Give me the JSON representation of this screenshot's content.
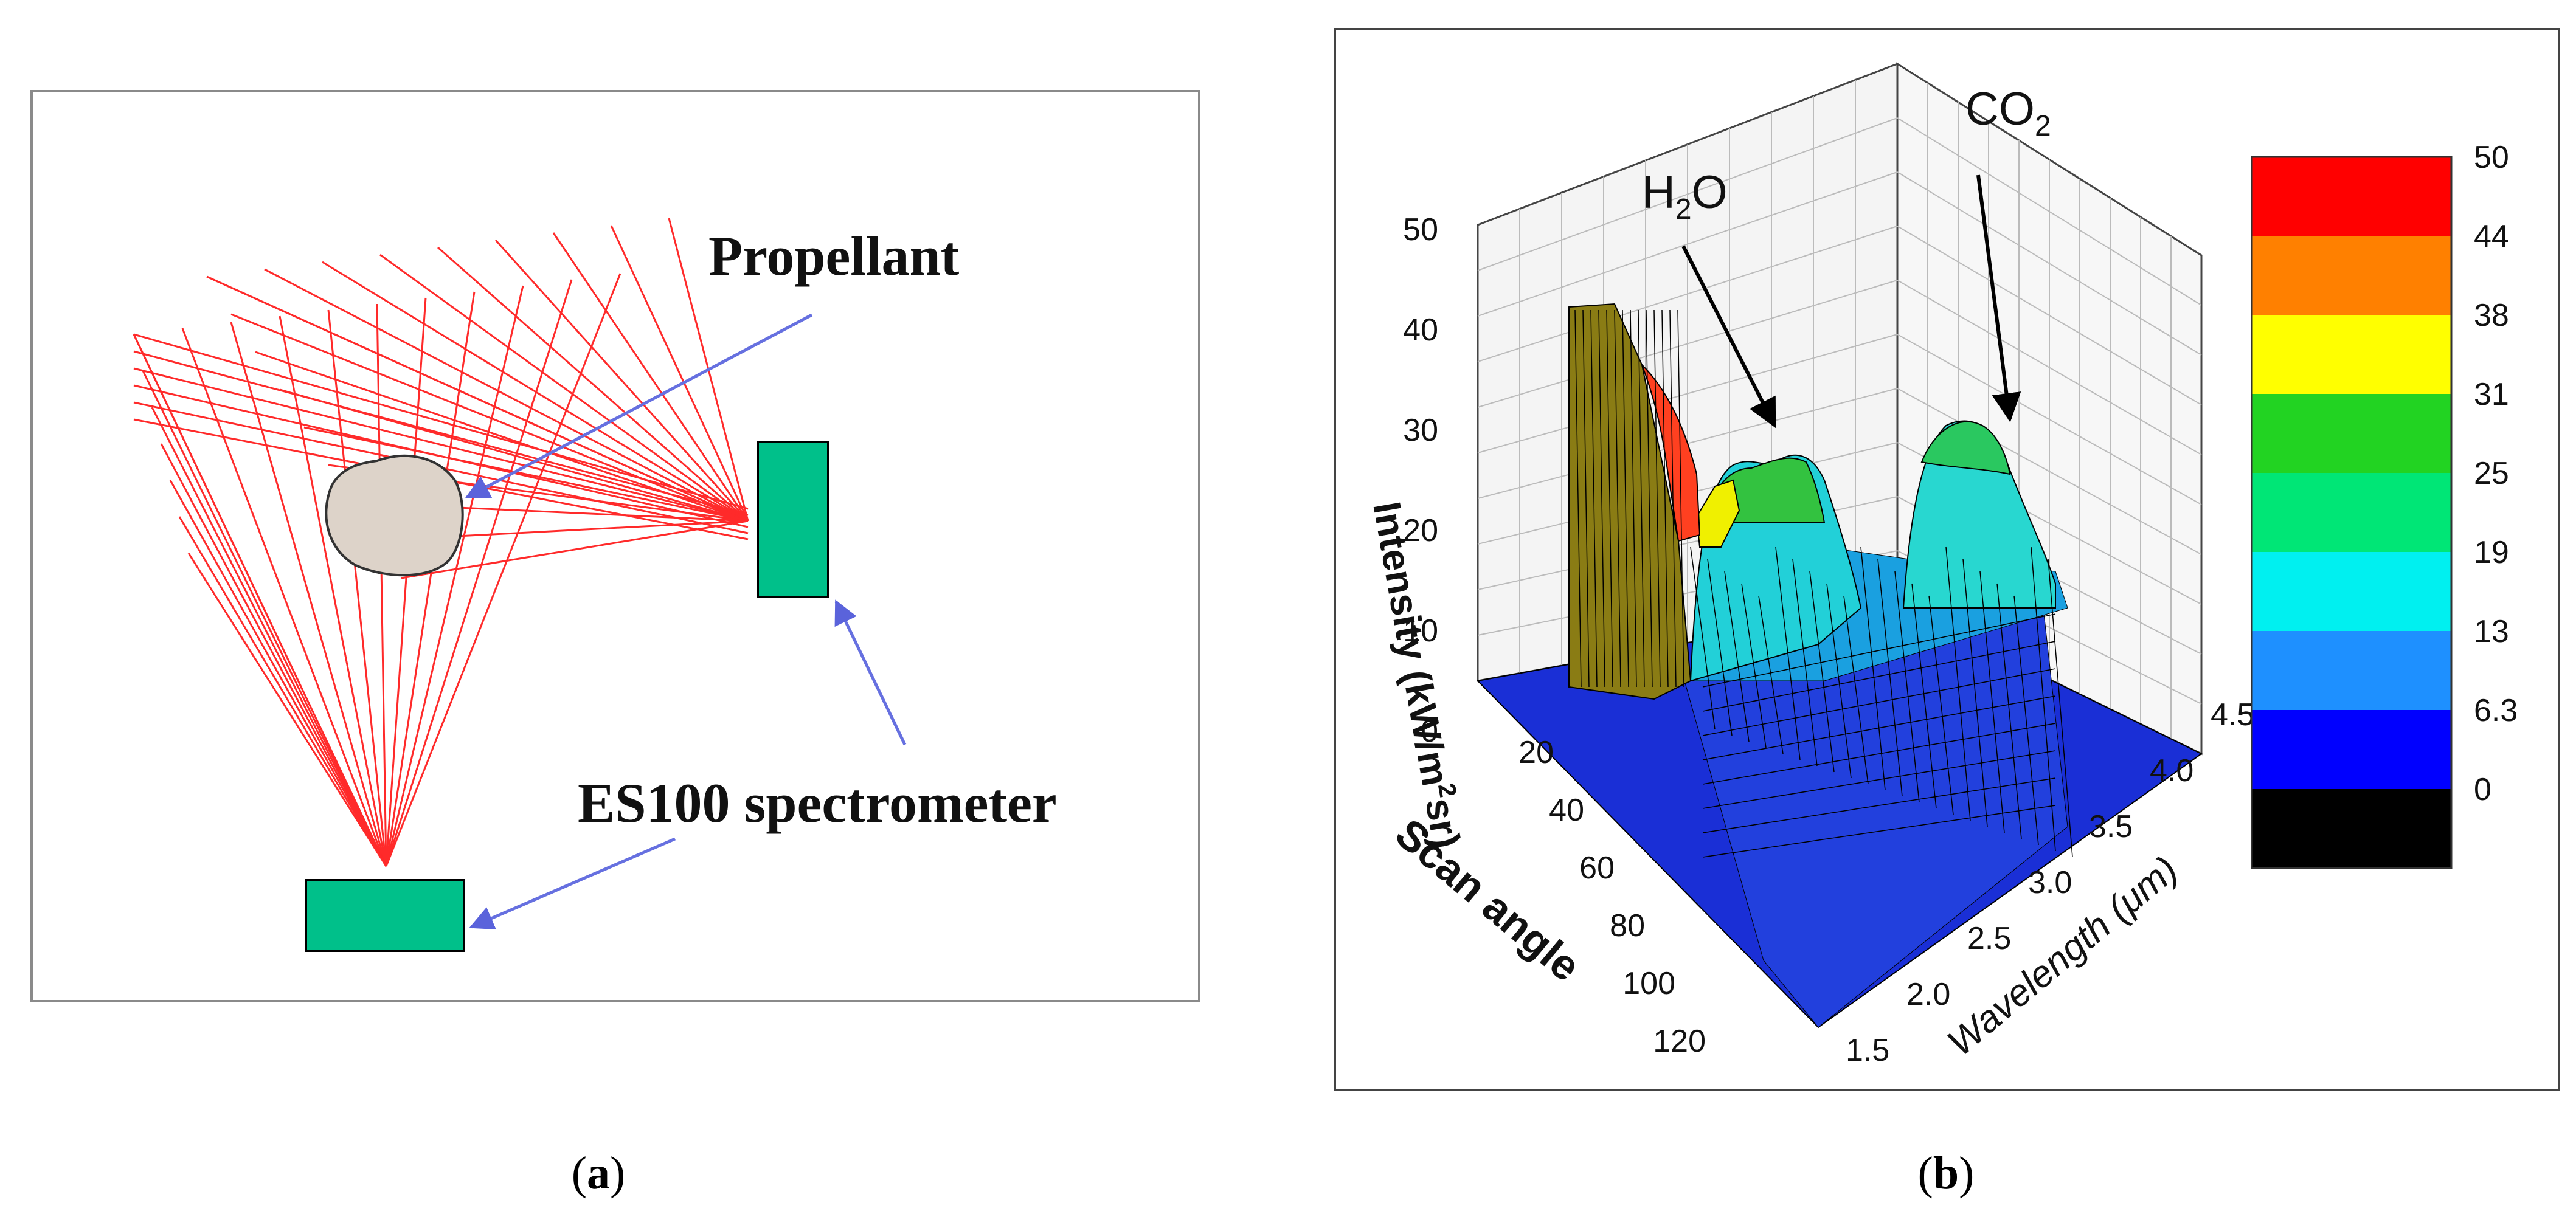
{
  "panel_a": {
    "labels": {
      "propellant": "Propellant",
      "spectrometer": "ES100 spectrometer"
    },
    "colors": {
      "rays": "#ff2a2a",
      "spectrometer": "#00c08a",
      "arrow": "#6670e0",
      "sample": "#ddd3c9"
    },
    "caption": {
      "open": "(",
      "letter": "a",
      "close": ")"
    }
  },
  "panel_b": {
    "labels": {
      "h2o": "H",
      "h2o_sub": "2",
      "h2o_end": "O",
      "co2": "CO",
      "co2_sub": "2"
    },
    "axes": {
      "z_label": {
        "a": "Intensity (kW/m",
        "sup": "2",
        "b": "sr)"
      },
      "y_label": "Scan angle",
      "x_label": {
        "a": "Wavelength (",
        "mu": "μ",
        "b": "m)"
      },
      "z_ticks": [
        "50",
        "40",
        "30",
        "20",
        "10",
        "0"
      ],
      "y_ticks": [
        "20",
        "40",
        "60",
        "80",
        "100",
        "120"
      ],
      "x_ticks": [
        "1.5",
        "2.0",
        "2.5",
        "3.0",
        "3.5",
        "4.0",
        "4.5"
      ]
    },
    "colorbar": {
      "labels": [
        "50",
        "44",
        "38",
        "31",
        "25",
        "19",
        "13",
        "6.3",
        "0"
      ],
      "colors": [
        "#ff0000",
        "#ff8000",
        "#ffff00",
        "#22d322",
        "#00e676",
        "#00f0f0",
        "#1e90ff",
        "#0000ff",
        "#000000"
      ]
    },
    "caption": {
      "open": "(",
      "letter": "b",
      "close": ")"
    }
  }
}
